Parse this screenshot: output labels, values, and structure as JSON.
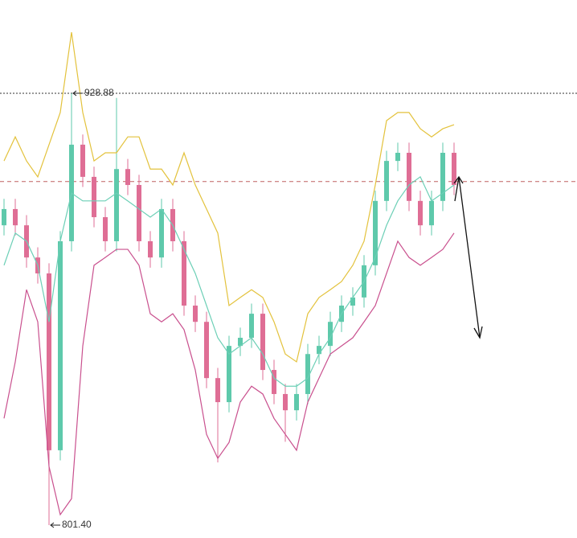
{
  "chart_data": {
    "type": "candlestick",
    "ylim": [
      797.6,
      956.4
    ],
    "up_color": "#5ec9ab",
    "down_color": "#df6e95",
    "open": [
      889.9,
      894.7,
      889.9,
      880.4,
      875.7,
      823.5,
      885.2,
      913.7,
      904.2,
      892.3,
      885.2,
      906.5,
      901.8,
      885.2,
      880.4,
      894.7,
      885.2,
      866.2,
      861.4,
      844.8,
      837.7,
      854.3,
      856.7,
      863.8,
      847.2,
      840.1,
      835.3,
      840.1,
      851.9,
      854.3,
      861.4,
      866.2,
      868.6,
      878.1,
      897.1,
      908.9,
      911.3,
      897.1,
      889.9,
      897.1,
      911.3
    ],
    "high": [
      897.7,
      897.7,
      892.9,
      883.4,
      878.7,
      888.2,
      928.88,
      916.7,
      907.2,
      895.3,
      927.5,
      909.5,
      904.8,
      888.2,
      897.7,
      897.7,
      888.2,
      869.2,
      864.4,
      847.8,
      857.3,
      859.7,
      866.8,
      866.8,
      850.2,
      843.1,
      843.1,
      854.9,
      857.3,
      864.4,
      869.2,
      871.6,
      881.1,
      900.1,
      911.9,
      914.3,
      914.3,
      900.1,
      900.1,
      914.3,
      914.3
    ],
    "low": [
      886.9,
      886.9,
      877.4,
      872.7,
      801.4,
      820.5,
      882.2,
      901.2,
      889.3,
      882.2,
      882.2,
      898.8,
      882.2,
      877.4,
      877.4,
      882.2,
      863.2,
      858.4,
      841.8,
      819.9,
      834.7,
      851.3,
      853.7,
      844.2,
      837.1,
      826.0,
      832.3,
      837.1,
      848.9,
      851.3,
      858.4,
      863.2,
      865.6,
      875.1,
      894.1,
      905.9,
      894.1,
      886.9,
      886.9,
      894.1,
      898.8
    ],
    "close": [
      894.7,
      889.9,
      880.4,
      875.7,
      823.5,
      885.2,
      913.7,
      904.2,
      892.3,
      885.2,
      906.5,
      901.8,
      885.2,
      880.4,
      894.7,
      885.2,
      866.2,
      861.4,
      844.8,
      837.7,
      854.3,
      856.7,
      863.8,
      847.2,
      840.1,
      835.3,
      840.1,
      851.9,
      854.3,
      861.4,
      866.2,
      868.6,
      878.1,
      897.1,
      908.9,
      911.3,
      897.1,
      889.9,
      897.1,
      911.3,
      901.8
    ],
    "bands": [
      {
        "color": "#e3c23c",
        "values": [
          908.9,
          916.0,
          908.9,
          904.2,
          913.7,
          923.2,
          946.9,
          923.2,
          908.9,
          911.3,
          911.3,
          916.0,
          916.0,
          906.5,
          906.5,
          901.8,
          911.3,
          901.8,
          894.7,
          887.6,
          866.2,
          868.6,
          870.9,
          868.6,
          861.4,
          851.9,
          849.6,
          863.8,
          868.6,
          870.9,
          873.3,
          878.1,
          885.2,
          901.8,
          920.8,
          923.2,
          923.2,
          918.4,
          916.0,
          918.4,
          919.6
        ]
      },
      {
        "color": "#6ccfb6",
        "values": [
          878.1,
          887.6,
          885.2,
          878.1,
          861.4,
          885.2,
          899.4,
          897.1,
          897.1,
          897.1,
          899.4,
          897.1,
          894.7,
          892.3,
          894.7,
          889.9,
          882.8,
          875.7,
          866.2,
          856.7,
          851.9,
          854.3,
          856.7,
          851.9,
          844.8,
          842.4,
          842.4,
          844.8,
          851.9,
          856.7,
          863.8,
          868.6,
          873.3,
          880.4,
          889.9,
          897.1,
          901.8,
          904.2,
          897.1,
          899.4,
          901.8
        ]
      },
      {
        "color": "#c9508e",
        "values": [
          832.9,
          849.6,
          870.9,
          861.4,
          818.7,
          804.5,
          809.2,
          854.3,
          878.1,
          880.4,
          882.8,
          882.8,
          878.1,
          863.8,
          861.4,
          863.8,
          859.1,
          847.2,
          828.2,
          821.1,
          825.8,
          837.7,
          842.4,
          840.1,
          832.9,
          828.2,
          823.5,
          837.7,
          844.8,
          851.9,
          854.3,
          856.7,
          861.4,
          866.2,
          875.7,
          885.2,
          880.4,
          878.1,
          880.4,
          882.8,
          887.6
        ]
      }
    ],
    "hlines": [
      {
        "value": 928.88,
        "style": "dotted",
        "color": "#333333"
      },
      {
        "value": 902.8,
        "style": "dashed",
        "color": "#c06060"
      }
    ],
    "annotations": [
      {
        "value": 928.88,
        "label": "928.88"
      },
      {
        "value": 801.4,
        "label": "801.40"
      }
    ]
  }
}
